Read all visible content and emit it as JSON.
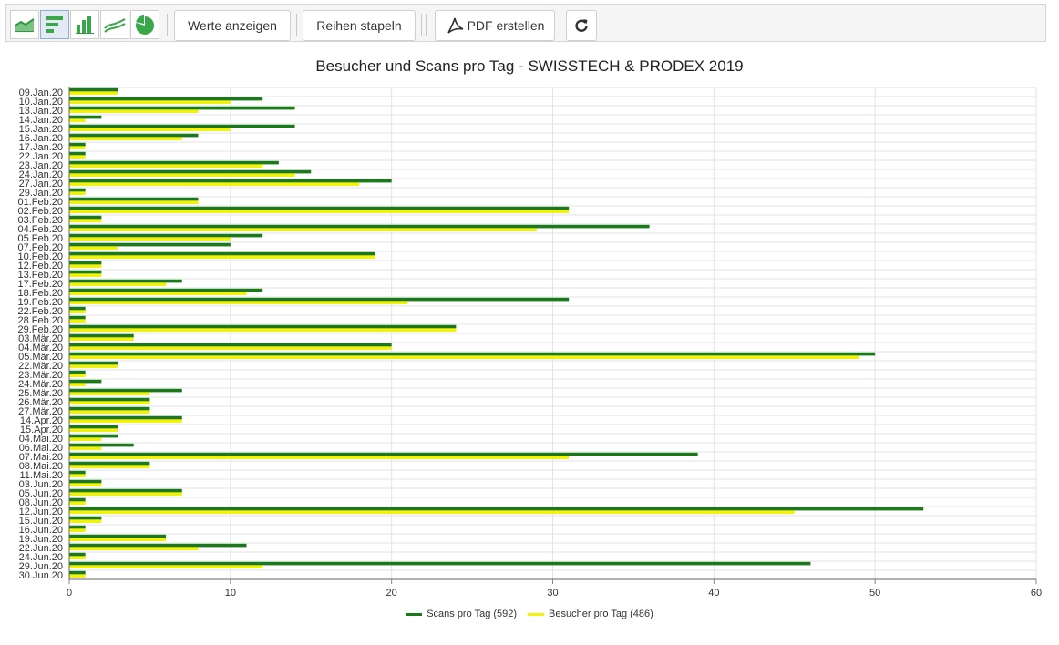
{
  "toolbar": {
    "chart_type_buttons": [
      {
        "name": "area-chart-icon"
      },
      {
        "name": "horizontal-bar-chart-icon",
        "active": true
      },
      {
        "name": "vertical-bar-chart-icon"
      },
      {
        "name": "line-chart-icon"
      },
      {
        "name": "pie-chart-icon"
      }
    ],
    "show_values_label": "Werte anzeigen",
    "stack_series_label": "Reihen stapeln",
    "create_pdf_label": "PDF erstellen",
    "refresh_icon": "refresh-icon"
  },
  "colors": {
    "scans": "#1a7a1a",
    "visitors": "#f2f20c",
    "grid": "#e3e3e3",
    "icon_green": "#3aa84a"
  },
  "chart_data": {
    "type": "bar",
    "orientation": "horizontal",
    "title": "Besucher und Scans pro Tag - SWISSTECH & PRODEX 2019",
    "xlim": [
      0,
      60
    ],
    "xticks": [
      0,
      10,
      20,
      30,
      40,
      50,
      60
    ],
    "grid": true,
    "legend_position": "bottom",
    "categories": [
      "09.Jan.20",
      "10.Jan.20",
      "13.Jan.20",
      "14.Jan.20",
      "15.Jan.20",
      "16.Jan.20",
      "17.Jan.20",
      "22.Jan.20",
      "23.Jan.20",
      "24.Jan.20",
      "27.Jan.20",
      "29.Jan.20",
      "01.Feb.20",
      "02.Feb.20",
      "03.Feb.20",
      "04.Feb.20",
      "05.Feb.20",
      "07.Feb.20",
      "10.Feb.20",
      "12.Feb.20",
      "13.Feb.20",
      "17.Feb.20",
      "18.Feb.20",
      "19.Feb.20",
      "22.Feb.20",
      "28.Feb.20",
      "29.Feb.20",
      "03.Mär.20",
      "04.Mär.20",
      "05.Mär.20",
      "22.Mär.20",
      "23.Mär.20",
      "24.Mär.20",
      "25.Mär.20",
      "26.Mär.20",
      "27.Mär.20",
      "14.Apr.20",
      "15.Apr.20",
      "04.Mai.20",
      "06.Mai.20",
      "07.Mai.20",
      "08.Mai.20",
      "11.Mai.20",
      "03.Jun.20",
      "05.Jun.20",
      "08.Jun.20",
      "12.Jun.20",
      "15.Jun.20",
      "16.Jun.20",
      "19.Jun.20",
      "22.Jun.20",
      "24.Jun.20",
      "29.Jun.20",
      "30.Jun.20"
    ],
    "series": [
      {
        "name": "Scans pro Tag (592)",
        "values": [
          3,
          12,
          14,
          2,
          14,
          8,
          1,
          1,
          13,
          15,
          20,
          1,
          8,
          31,
          2,
          36,
          12,
          10,
          19,
          2,
          2,
          7,
          12,
          31,
          1,
          1,
          24,
          4,
          20,
          50,
          3,
          1,
          2,
          7,
          5,
          5,
          7,
          3,
          3,
          4,
          39,
          5,
          1,
          2,
          7,
          1,
          53,
          2,
          1,
          6,
          11,
          1,
          46,
          1
        ]
      },
      {
        "name": "Besucher pro Tag (486)",
        "values": [
          3,
          10,
          8,
          1,
          10,
          7,
          1,
          1,
          12,
          14,
          18,
          1,
          8,
          31,
          2,
          29,
          10,
          3,
          19,
          2,
          2,
          6,
          11,
          21,
          1,
          1,
          24,
          4,
          20,
          49,
          3,
          1,
          1,
          5,
          5,
          5,
          7,
          3,
          2,
          2,
          31,
          5,
          1,
          2,
          7,
          1,
          45,
          2,
          1,
          6,
          8,
          1,
          12,
          1
        ]
      }
    ]
  }
}
